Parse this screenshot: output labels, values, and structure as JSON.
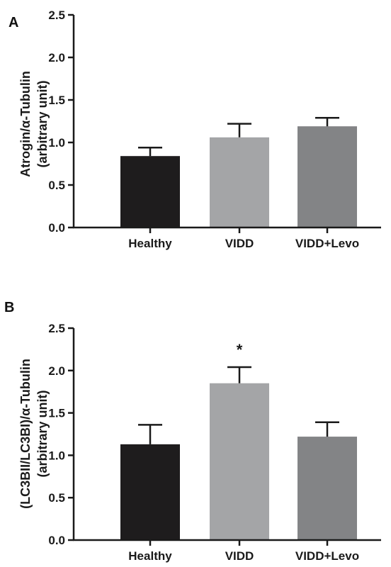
{
  "chart_data": [
    {
      "type": "bar",
      "panel": "A",
      "categories": [
        "Healthy",
        "VIDD",
        "VIDD+Levo"
      ],
      "values": [
        0.84,
        1.06,
        1.19
      ],
      "errors": [
        0.1,
        0.16,
        0.1
      ],
      "colors": [
        "#1e1c1d",
        "#a4a5a7",
        "#838486"
      ],
      "ylabel_line1": "Atrogin/α-Tubulin",
      "ylabel_line2": "(arbitrary unit)",
      "ylim": [
        0,
        2.5
      ],
      "yticks": [
        0.0,
        0.5,
        1.0,
        1.5,
        2.0,
        2.5
      ],
      "ytick_labels": [
        "0.0",
        "0.5",
        "1.0",
        "1.5",
        "2.0",
        "2.5"
      ],
      "annotations": [
        "",
        "",
        ""
      ],
      "grid": false
    },
    {
      "type": "bar",
      "panel": "B",
      "categories": [
        "Healthy",
        "VIDD",
        "VIDD+Levo"
      ],
      "values": [
        1.13,
        1.85,
        1.22
      ],
      "errors": [
        0.23,
        0.19,
        0.17
      ],
      "colors": [
        "#1e1c1d",
        "#a4a5a7",
        "#838486"
      ],
      "ylabel_line1": "(LC3BII/LC3BI)/α-Tubulin",
      "ylabel_line2": "(arbitrary unit)",
      "ylim": [
        0,
        2.5
      ],
      "yticks": [
        0.0,
        0.5,
        1.0,
        1.5,
        2.0,
        2.5
      ],
      "ytick_labels": [
        "0.0",
        "0.5",
        "1.0",
        "1.5",
        "2.0",
        "2.5"
      ],
      "annotations": [
        "",
        "*",
        ""
      ],
      "grid": false
    }
  ]
}
